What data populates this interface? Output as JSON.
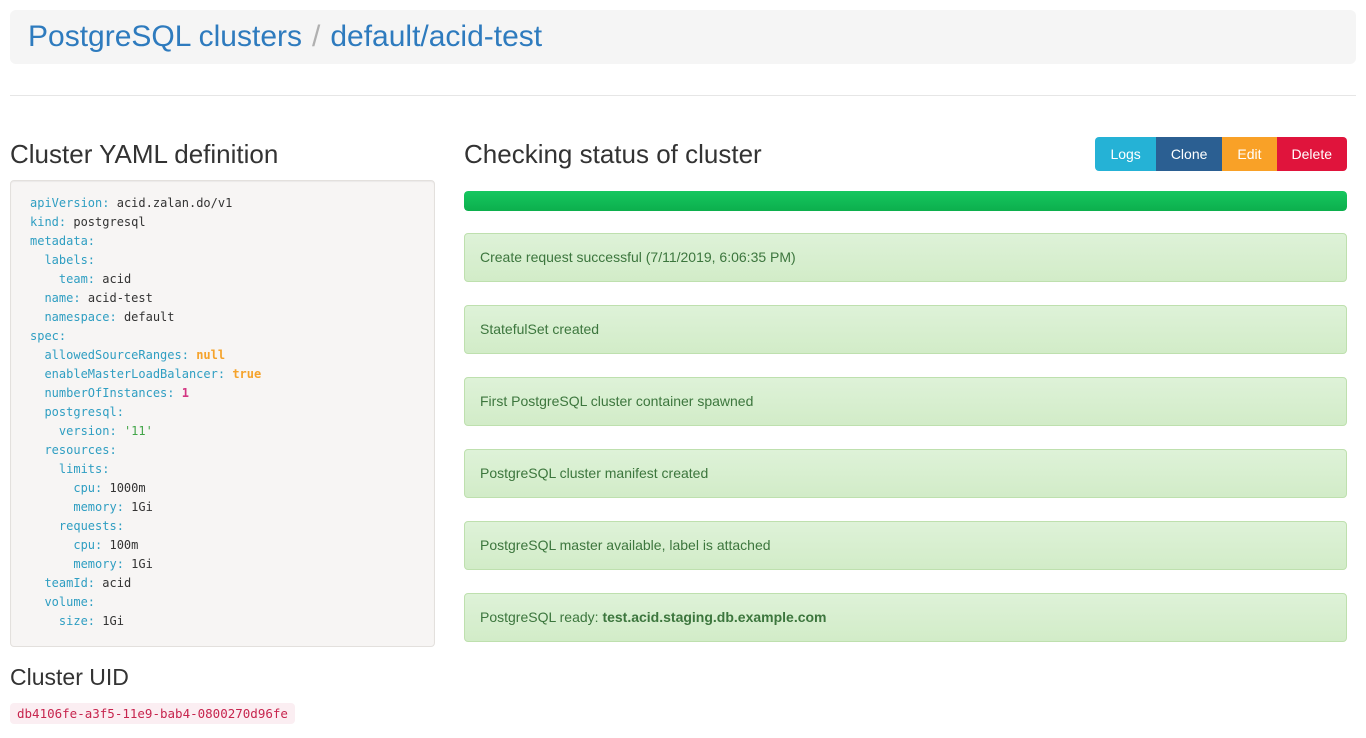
{
  "breadcrumb": {
    "root": "PostgreSQL clusters",
    "separator": "/",
    "current": "default/acid-test"
  },
  "yaml_section": {
    "title": "Cluster YAML definition",
    "lines": [
      {
        "i": 0,
        "k": "apiVersion",
        "v": "acid.zalan.do/v1",
        "vt": "plain"
      },
      {
        "i": 0,
        "k": "kind",
        "v": "postgresql",
        "vt": "plain"
      },
      {
        "i": 0,
        "k": "metadata",
        "vt": "none"
      },
      {
        "i": 1,
        "k": "labels",
        "vt": "none"
      },
      {
        "i": 2,
        "k": "team",
        "v": "acid",
        "vt": "plain"
      },
      {
        "i": 1,
        "k": "name",
        "v": "acid-test",
        "vt": "plain"
      },
      {
        "i": 1,
        "k": "namespace",
        "v": "default",
        "vt": "plain"
      },
      {
        "i": 0,
        "k": "spec",
        "vt": "none"
      },
      {
        "i": 1,
        "k": "allowedSourceRanges",
        "v": "null",
        "vt": "keyword"
      },
      {
        "i": 1,
        "k": "enableMasterLoadBalancer",
        "v": "true",
        "vt": "keyword"
      },
      {
        "i": 1,
        "k": "numberOfInstances",
        "v": "1",
        "vt": "number"
      },
      {
        "i": 1,
        "k": "postgresql",
        "vt": "none"
      },
      {
        "i": 2,
        "k": "version",
        "v": "'11'",
        "vt": "string"
      },
      {
        "i": 1,
        "k": "resources",
        "vt": "none"
      },
      {
        "i": 2,
        "k": "limits",
        "vt": "none"
      },
      {
        "i": 3,
        "k": "cpu",
        "v": "1000m",
        "vt": "plain"
      },
      {
        "i": 3,
        "k": "memory",
        "v": "1Gi",
        "vt": "plain"
      },
      {
        "i": 2,
        "k": "requests",
        "vt": "none"
      },
      {
        "i": 3,
        "k": "cpu",
        "v": "100m",
        "vt": "plain"
      },
      {
        "i": 3,
        "k": "memory",
        "v": "1Gi",
        "vt": "plain"
      },
      {
        "i": 1,
        "k": "teamId",
        "v": "acid",
        "vt": "plain"
      },
      {
        "i": 1,
        "k": "volume",
        "vt": "none"
      },
      {
        "i": 2,
        "k": "size",
        "v": "1Gi",
        "vt": "plain"
      }
    ]
  },
  "uid_section": {
    "title": "Cluster UID",
    "uid": "db4106fe-a3f5-11e9-bab4-0800270d96fe"
  },
  "status_section": {
    "title": "Checking status of cluster",
    "buttons": [
      {
        "label": "Logs",
        "color": "#25b2d6"
      },
      {
        "label": "Clone",
        "color": "#2b5f92"
      },
      {
        "label": "Edit",
        "color": "#f9a127"
      },
      {
        "label": "Delete",
        "color": "#e0143c"
      }
    ],
    "progress_percent": 100,
    "messages": [
      {
        "text": "Create request successful (7/11/2019, 6:06:35 PM)"
      },
      {
        "text": "StatefulSet created"
      },
      {
        "text": "First PostgreSQL cluster container spawned"
      },
      {
        "text": "PostgreSQL cluster manifest created"
      },
      {
        "text": "PostgreSQL master available, label is attached"
      },
      {
        "prefix": "PostgreSQL ready: ",
        "bold": "test.acid.staging.db.example.com"
      }
    ]
  },
  "colors": {
    "link_blue": "#2e7bbe",
    "separator_grey": "#b0b0b0",
    "heading_text": "#333333",
    "progress_green_top": "#16c75f",
    "progress_green_bottom": "#0caf4d",
    "alert_bg_top": "#def2d8",
    "alert_bg_bottom": "#d2ecc8",
    "alert_border": "#bee0ae",
    "alert_text": "#3c763d",
    "yaml_key": "#2f9ec2",
    "yaml_keyword": "#f5a32c",
    "yaml_number": "#d33682",
    "yaml_string": "#42a548",
    "uid_text": "#c7254e",
    "uid_bg": "#fbeef2"
  }
}
